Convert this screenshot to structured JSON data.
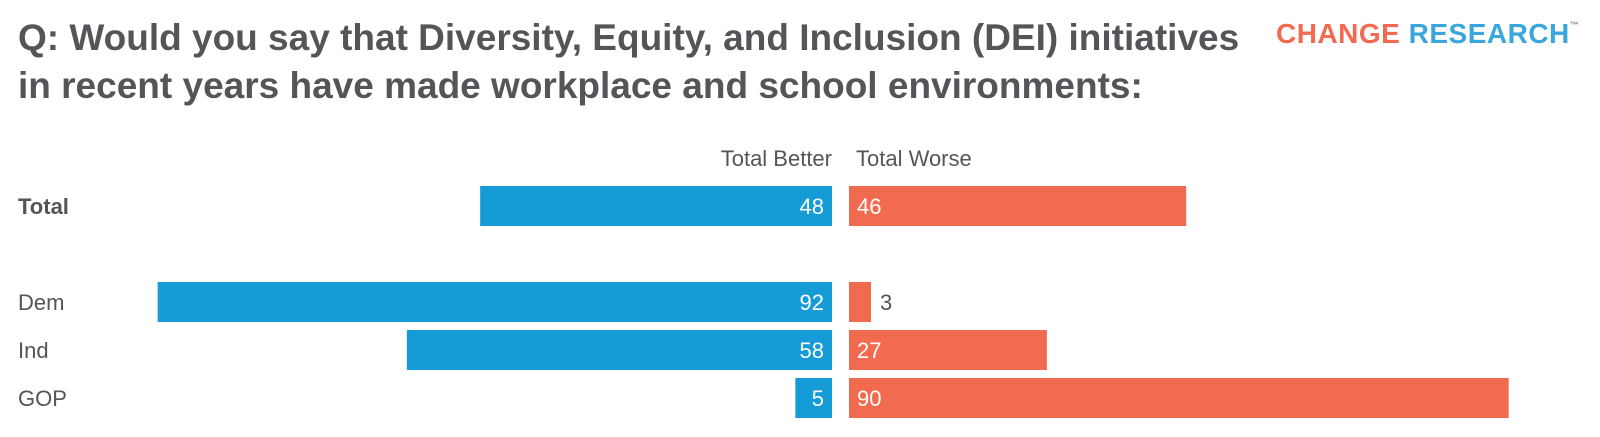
{
  "title": "Q: Would you say that Diversity, Equity, and Inclusion (DEI) initiatives in recent years have made workplace and school environments:",
  "logo": {
    "word1": "CHANGE",
    "word2": "RESEARCH",
    "tm": "™"
  },
  "colors": {
    "better": "#159cd6",
    "worse": "#f26b50",
    "text": "#555559",
    "label_on_bar": "#ffffff"
  },
  "chart_data": {
    "type": "bar",
    "orientation": "horizontal-diverging",
    "title": "Q: Would you say that Diversity, Equity, and Inclusion (DEI) initiatives in recent years have made workplace and school environments:",
    "categories": [
      "Total",
      "Dem",
      "Ind",
      "GOP"
    ],
    "series": [
      {
        "name": "Total Better",
        "values": [
          48,
          92,
          58,
          5
        ]
      },
      {
        "name": "Total Worse",
        "values": [
          46,
          3,
          27,
          90
        ]
      }
    ],
    "xlim": [
      0,
      100
    ],
    "grid": false,
    "legend": "column headers above bars"
  }
}
